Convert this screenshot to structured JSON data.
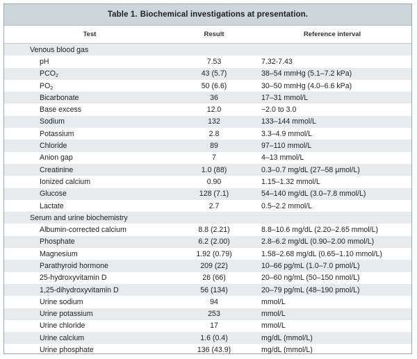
{
  "title": {
    "number": "Table 1.",
    "text": "Biochemical investigations at presentation."
  },
  "headers": {
    "test": "Test",
    "result": "Result",
    "reference": "Reference interval"
  },
  "rows": [
    {
      "type": "section",
      "test": "Venous blood gas",
      "result": "",
      "ref": ""
    },
    {
      "type": "data",
      "test": "pH",
      "result": "7.53",
      "ref": "7.32-7.43"
    },
    {
      "type": "data",
      "test": "PCO",
      "sub": "2",
      "result": "43 (5.7)",
      "ref": "38–54 mmHg (5.1–7.2 kPa)"
    },
    {
      "type": "data",
      "test": "PO",
      "sub": "2",
      "result": "50 (6.6)",
      "ref": "30–50 mmHg (4.0–6.6 kPa)"
    },
    {
      "type": "data",
      "test": "Bicarbonate",
      "result": "36",
      "ref": "17–31 mmol/L"
    },
    {
      "type": "data",
      "test": "Base excess",
      "result": "12.0",
      "ref": "−2.0 to 3.0"
    },
    {
      "type": "data",
      "test": "Sodium",
      "result": "132",
      "ref": "133–144 mmol/L"
    },
    {
      "type": "data",
      "test": "Potassium",
      "result": "2.8",
      "ref": "3.3–4.9 mmol/L"
    },
    {
      "type": "data",
      "test": "Chloride",
      "result": "89",
      "ref": "97–110 mmol/L"
    },
    {
      "type": "data",
      "test": "Anion gap",
      "result": "7",
      "ref": "4–13 mmol/L"
    },
    {
      "type": "data",
      "test": "Creatinine",
      "result": "1.0 (88)",
      "ref": "0.3–0.7 mg/dL (27–58 μmol/L)"
    },
    {
      "type": "data",
      "test": "Ionized calcium",
      "result": "0.90",
      "ref": "1.15–1.32 mmol/L"
    },
    {
      "type": "data",
      "test": "Glucose",
      "result": "128 (7.1)",
      "ref": "54–140 mg/dL (3.0–7.8 mmol/L)"
    },
    {
      "type": "data",
      "test": "Lactate",
      "result": "2.7",
      "ref": "0.5–2.2 mmol/L"
    },
    {
      "type": "section",
      "test": "Serum and urine biochemistry",
      "result": "",
      "ref": ""
    },
    {
      "type": "data",
      "test": "Albumin-corrected calcium",
      "result": "8.8 (2.21)",
      "ref": "8.8–10.6 mg/dL (2.20–2.65 mmol/L)"
    },
    {
      "type": "data",
      "test": "Phosphate",
      "result": "6.2 (2.00)",
      "ref": "2.8–6.2 mg/dL (0.90–2.00 mmol/L)"
    },
    {
      "type": "data",
      "test": "Magnesium",
      "result": "1.92 (0.79)",
      "ref": "1.58–2.68 mg/dL (0.65–1.10 mmol/L)"
    },
    {
      "type": "data",
      "test": "Parathyroid hormone",
      "result": "209 (22)",
      "ref": "10–66 pg/mL (1.0–7.0 pmol/L)"
    },
    {
      "type": "data",
      "test": "25-hydroxyvitamin D",
      "result": "26 (66)",
      "ref": "20–60 ng/mL (50–150 nmol/L)"
    },
    {
      "type": "data",
      "test": "1,25-dihydroxyvitamin D",
      "result": "56 (134)",
      "ref": "20–79 pg/mL (48–190 pmol/L)"
    },
    {
      "type": "data",
      "test": "Urine sodium",
      "result": "94",
      "ref": "mmol/L"
    },
    {
      "type": "data",
      "test": "Urine potassium",
      "result": "253",
      "ref": "mmol/L"
    },
    {
      "type": "data",
      "test": "Urine chloride",
      "result": "17",
      "ref": "mmol/L"
    },
    {
      "type": "data",
      "test": "Urine calcium",
      "result": "1.6 (0.4)",
      "ref": "mg/dL (mmol/L)"
    },
    {
      "type": "data",
      "test": "Urine phosphate",
      "result": "136 (43.9)",
      "ref": "mg/dL (mmol/L)"
    }
  ]
}
